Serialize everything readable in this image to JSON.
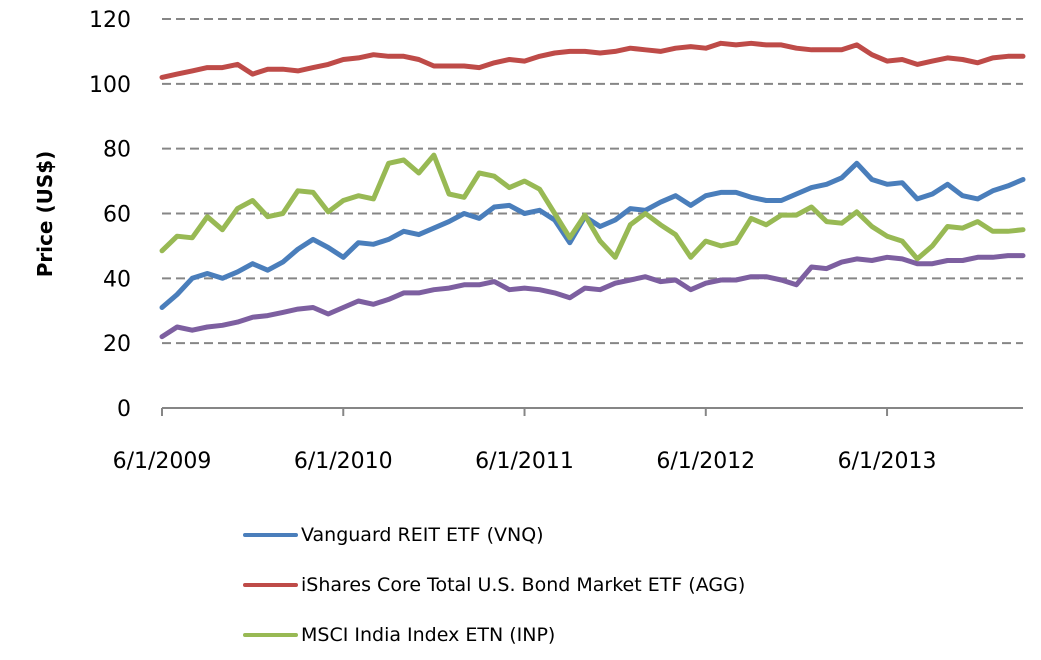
{
  "chart_data": {
    "type": "line",
    "title": "",
    "xlabel": "",
    "ylabel": "Price (US$)",
    "ylim": [
      0,
      120
    ],
    "yticks": [
      "0",
      "20",
      "40",
      "60",
      "80",
      "100",
      "120"
    ],
    "grid": "horizontal dashed",
    "x_start": "6/1/2009",
    "x_frequency": "monthly",
    "xticks": [
      "6/1/2009",
      "6/1/2010",
      "6/1/2011",
      "6/1/2012",
      "6/1/2013"
    ],
    "legend_position": "bottom",
    "series": [
      {
        "name": "Vanguard REIT ETF (VNQ)",
        "color": "#4A7EBB",
        "values": [
          31,
          35,
          40,
          41.5,
          40,
          42,
          44.5,
          42.5,
          45,
          49,
          52,
          49.5,
          46.5,
          51,
          50.5,
          52,
          54.5,
          53.5,
          55.5,
          57.5,
          60,
          58.5,
          62,
          62.5,
          60,
          61,
          58,
          51,
          59,
          56,
          58,
          61.5,
          61,
          63.5,
          65.5,
          62.5,
          65.5,
          66.5,
          66.5,
          65,
          64,
          64,
          66,
          68,
          69,
          71,
          75.5,
          70.5,
          69,
          69.5,
          64.5,
          66,
          69,
          65.5,
          64.5,
          67,
          68.5,
          70.5
        ]
      },
      {
        "name": "iShares Core Total U.S. Bond Market ETF (AGG)",
        "color": "#BE4B48",
        "values": [
          102,
          103,
          104,
          105,
          105,
          106,
          103,
          104.5,
          104.5,
          104,
          105,
          106,
          107.5,
          108,
          109,
          108.5,
          108.5,
          107.5,
          105.5,
          105.5,
          105.5,
          105,
          106.5,
          107.5,
          107,
          108.5,
          109.5,
          110,
          110,
          109.5,
          110,
          111,
          110.5,
          110,
          111,
          111.5,
          111,
          112.5,
          112,
          112.5,
          112,
          112,
          111,
          110.5,
          110.5,
          110.5,
          112,
          109,
          107,
          107.5,
          106,
          107,
          108,
          107.5,
          106.5,
          108,
          108.5,
          108.5
        ]
      },
      {
        "name": "MSCI India Index ETN (INP)",
        "color": "#98B954",
        "values": [
          48.5,
          53,
          52.5,
          59,
          55,
          61.5,
          64,
          59,
          60,
          67,
          66.5,
          60.5,
          64,
          65.5,
          64.5,
          75.5,
          76.5,
          72.5,
          78,
          66,
          65,
          72.5,
          71.5,
          68,
          70,
          67.5,
          60,
          52.5,
          59.5,
          51.5,
          46.5,
          56.5,
          60,
          56.5,
          53.5,
          46.5,
          51.5,
          50,
          51,
          58.5,
          56.5,
          59.5,
          59.5,
          62,
          57.5,
          57,
          60.5,
          56,
          53,
          51.5,
          46,
          50,
          56,
          55.5,
          57.5,
          54.5,
          54.5,
          55
        ]
      },
      {
        "name": "",
        "color": "#7D5FA0",
        "values": [
          22,
          25,
          24,
          25,
          25.5,
          26.5,
          28,
          28.5,
          29.5,
          30.5,
          31,
          29,
          31,
          33,
          32,
          33.5,
          35.5,
          35.5,
          36.5,
          37,
          38,
          38,
          39,
          36.5,
          37,
          36.5,
          35.5,
          34,
          37,
          36.5,
          38.5,
          39.5,
          40.5,
          39,
          39.5,
          36.5,
          38.5,
          39.5,
          39.5,
          40.5,
          40.5,
          39.5,
          38,
          43.5,
          43,
          45,
          46,
          45.5,
          46.5,
          46,
          44.5,
          44.5,
          45.5,
          45.5,
          46.5,
          46.5,
          47,
          47
        ]
      }
    ]
  },
  "legend": {
    "items": [
      {
        "label": "Vanguard REIT ETF (VNQ)",
        "color": "#4A7EBB"
      },
      {
        "label": "iShares Core Total U.S. Bond Market ETF (AGG)",
        "color": "#BE4B48"
      },
      {
        "label": "MSCI India Index ETN (INP)",
        "color": "#98B954"
      }
    ]
  }
}
